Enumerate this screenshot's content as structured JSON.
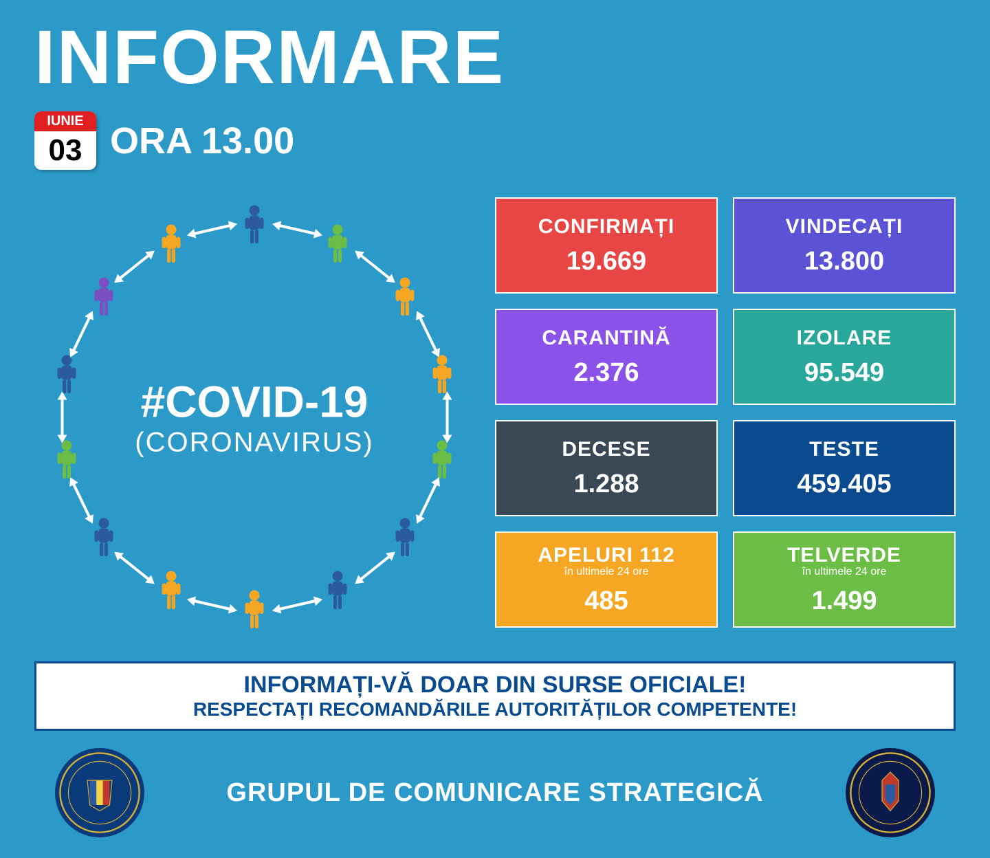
{
  "header": {
    "title": "INFORMARE",
    "month": "IUNIE",
    "day": "03",
    "time": "ORA 13.00"
  },
  "covid": {
    "hashtag": "#COVID-19",
    "subtitle": "(CORONAVIRUS)",
    "circle_radius": 280,
    "person_colors": [
      "#2b5a9e",
      "#6bbd45",
      "#f5a623",
      "#f5a623",
      "#6bbd45",
      "#2b5a9e",
      "#2b5a9e",
      "#f5a623",
      "#f5a623",
      "#2b5a9e",
      "#6bbd45",
      "#2b5a9e",
      "#7a4fc1",
      "#f5a623"
    ]
  },
  "stats": [
    {
      "label": "CONFIRMAȚI",
      "value": "19.669",
      "color": "#e84545"
    },
    {
      "label": "VINDECAȚI",
      "value": "13.800",
      "color": "#5b52d6"
    },
    {
      "label": "CARANTINĂ",
      "value": "2.376",
      "color": "#8a52e8"
    },
    {
      "label": "IZOLARE",
      "value": "95.549",
      "color": "#2aa79b"
    },
    {
      "label": "DECESE",
      "value": "1.288",
      "color": "#3a4856"
    },
    {
      "label": "TESTE",
      "value": "459.405",
      "color": "#0a4b8f"
    },
    {
      "label": "APELURI 112",
      "sublabel": "în ultimele 24 ore",
      "value": "485",
      "color": "#f5a623"
    },
    {
      "label": "TELVERDE",
      "sublabel": "în ultimele 24 ore",
      "value": "1.499",
      "color": "#6bbd45"
    }
  ],
  "footer": {
    "line1": "INFORMAȚI-VĂ DOAR DIN SURSE OFICIALE!",
    "line2": "RESPECTAȚI RECOMANDĂRILE AUTORITĂȚILOR COMPETENTE!"
  },
  "bottom": {
    "group_name": "GRUPUL DE COMUNICARE STRATEGICĂ",
    "emblem_left_bg": "#0a3a7a",
    "emblem_right_bg": "#0a1a4a"
  }
}
